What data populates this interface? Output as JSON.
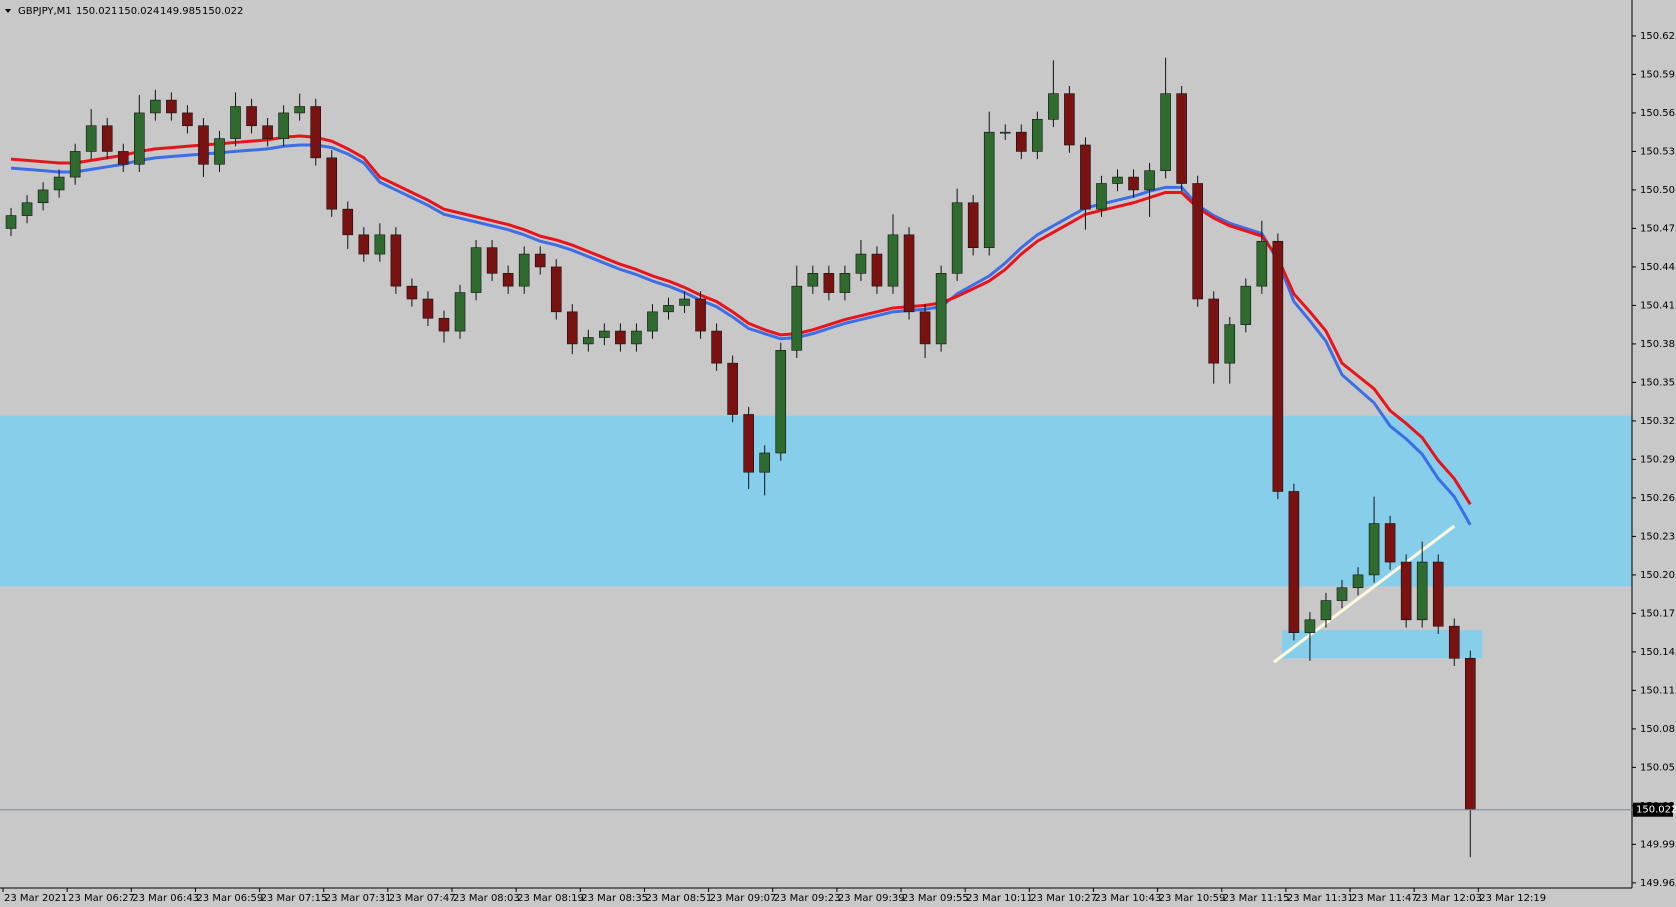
{
  "chart_data": {
    "type": "candlestick",
    "symbol": "GBPJPY,M1",
    "ohlc": [
      150.021,
      150.024,
      149.985,
      150.022
    ],
    "current_price": 150.022,
    "ylim": [
      149.961,
      150.653
    ],
    "yticks": [
      150.625,
      150.595,
      150.565,
      150.535,
      150.505,
      150.475,
      150.445,
      150.415,
      150.385,
      150.355,
      150.325,
      150.295,
      150.265,
      150.235,
      150.205,
      150.175,
      150.145,
      150.115,
      150.085,
      150.055,
      150.025,
      149.995,
      149.965
    ],
    "time_labels": [
      "23 Mar 2021",
      "23 Mar 06:27",
      "23 Mar 06:43",
      "23 Mar 06:59",
      "23 Mar 07:15",
      "23 Mar 07:31",
      "23 Mar 07:47",
      "23 Mar 08:03",
      "23 Mar 08:19",
      "23 Mar 08:35",
      "23 Mar 08:51",
      "23 Mar 09:07",
      "23 Mar 09:23",
      "23 Mar 09:39",
      "23 Mar 09:55",
      "23 Mar 10:11",
      "23 Mar 10:27",
      "23 Mar 10:43",
      "23 Mar 10:59",
      "23 Mar 11:15",
      "23 Mar 11:31",
      "23 Mar 11:47",
      "23 Mar 12:03",
      "23 Mar 12:19"
    ],
    "up_color": "#2f6b2f",
    "down_color": "#7a1212",
    "zones": [
      {
        "low": 150.196,
        "high": 150.329,
        "color": "#87ceeb"
      },
      {
        "low": 150.14,
        "high": 150.162,
        "x": [
          79.25,
          91.75
        ],
        "color": "#87ceeb"
      }
    ],
    "trendline": {
      "x": [
        78.75,
        90
      ],
      "y": [
        150.137,
        150.243
      ],
      "color": "#fff8dc"
    },
    "candles": [
      [
        150.475,
        150.491,
        150.469,
        150.485
      ],
      [
        150.485,
        150.501,
        150.479,
        150.495
      ],
      [
        150.495,
        150.511,
        150.489,
        150.505
      ],
      [
        150.505,
        150.521,
        150.499,
        150.515
      ],
      [
        150.515,
        150.541,
        150.509,
        150.535
      ],
      [
        150.535,
        150.568,
        150.529,
        150.555
      ],
      [
        150.555,
        150.561,
        150.529,
        150.535
      ],
      [
        150.535,
        150.541,
        150.519,
        150.525
      ],
      [
        150.525,
        150.579,
        150.519,
        150.565
      ],
      [
        150.565,
        150.583,
        150.559,
        150.575
      ],
      [
        150.575,
        150.581,
        150.559,
        150.565
      ],
      [
        150.565,
        150.571,
        150.549,
        150.555
      ],
      [
        150.555,
        150.561,
        150.515,
        150.525
      ],
      [
        150.525,
        150.551,
        150.519,
        150.545
      ],
      [
        150.545,
        150.581,
        150.539,
        150.57
      ],
      [
        150.57,
        150.576,
        150.549,
        150.555
      ],
      [
        150.555,
        150.561,
        150.539,
        150.545
      ],
      [
        150.545,
        150.571,
        150.539,
        150.565
      ],
      [
        150.565,
        150.58,
        150.559,
        150.57
      ],
      [
        150.57,
        150.576,
        150.524,
        150.53
      ],
      [
        150.53,
        150.536,
        150.484,
        150.49
      ],
      [
        150.49,
        150.496,
        150.459,
        150.47
      ],
      [
        150.47,
        150.476,
        150.449,
        150.455
      ],
      [
        150.455,
        150.479,
        150.449,
        150.47
      ],
      [
        150.47,
        150.476,
        150.424,
        150.43
      ],
      [
        150.43,
        150.436,
        150.414,
        150.42
      ],
      [
        150.42,
        150.426,
        150.399,
        150.405
      ],
      [
        150.405,
        150.411,
        150.386,
        150.395
      ],
      [
        150.395,
        150.431,
        150.389,
        150.425
      ],
      [
        150.425,
        150.466,
        150.419,
        150.46
      ],
      [
        150.46,
        150.466,
        150.434,
        150.44
      ],
      [
        150.44,
        150.446,
        150.424,
        150.43
      ],
      [
        150.43,
        150.461,
        150.424,
        150.455
      ],
      [
        150.455,
        150.461,
        150.439,
        150.445
      ],
      [
        150.445,
        150.451,
        150.404,
        150.41
      ],
      [
        150.41,
        150.416,
        150.377,
        150.385
      ],
      [
        150.385,
        150.396,
        150.379,
        150.39
      ],
      [
        150.39,
        150.401,
        150.384,
        150.395
      ],
      [
        150.395,
        150.401,
        150.379,
        150.385
      ],
      [
        150.385,
        150.401,
        150.379,
        150.395
      ],
      [
        150.395,
        150.416,
        150.389,
        150.41
      ],
      [
        150.41,
        150.421,
        150.404,
        150.415
      ],
      [
        150.415,
        150.426,
        150.409,
        150.42
      ],
      [
        150.42,
        150.426,
        150.389,
        150.395
      ],
      [
        150.395,
        150.401,
        150.364,
        150.37
      ],
      [
        150.37,
        150.376,
        150.324,
        150.33
      ],
      [
        150.33,
        150.336,
        150.272,
        150.285
      ],
      [
        150.285,
        150.306,
        150.267,
        150.3
      ],
      [
        150.3,
        150.386,
        150.294,
        150.38
      ],
      [
        150.38,
        150.446,
        150.374,
        150.43
      ],
      [
        150.43,
        150.446,
        150.424,
        150.44
      ],
      [
        150.44,
        150.446,
        150.419,
        150.425
      ],
      [
        150.425,
        150.446,
        150.419,
        150.44
      ],
      [
        150.44,
        150.466,
        150.434,
        150.455
      ],
      [
        150.455,
        150.461,
        150.424,
        150.43
      ],
      [
        150.43,
        150.486,
        150.424,
        150.47
      ],
      [
        150.47,
        150.476,
        150.404,
        150.41
      ],
      [
        150.41,
        150.416,
        150.374,
        150.385
      ],
      [
        150.385,
        150.446,
        150.379,
        150.44
      ],
      [
        150.44,
        150.506,
        150.434,
        150.495
      ],
      [
        150.495,
        150.501,
        150.454,
        150.46
      ],
      [
        150.46,
        150.566,
        150.454,
        150.55
      ],
      [
        150.55,
        150.556,
        150.544,
        150.55
      ],
      [
        150.55,
        150.556,
        150.529,
        150.535
      ],
      [
        150.535,
        150.566,
        150.529,
        150.56
      ],
      [
        150.56,
        150.606,
        150.554,
        150.58
      ],
      [
        150.58,
        150.586,
        150.534,
        150.54
      ],
      [
        150.54,
        150.546,
        150.474,
        150.49
      ],
      [
        150.49,
        150.516,
        150.484,
        150.51
      ],
      [
        150.51,
        150.521,
        150.504,
        150.515
      ],
      [
        150.515,
        150.521,
        150.499,
        150.505
      ],
      [
        150.505,
        150.526,
        150.484,
        150.52
      ],
      [
        150.52,
        150.608,
        150.514,
        150.58
      ],
      [
        150.58,
        150.586,
        150.504,
        150.51
      ],
      [
        150.51,
        150.516,
        150.414,
        150.42
      ],
      [
        150.42,
        150.426,
        150.354,
        150.37
      ],
      [
        150.37,
        150.406,
        150.354,
        150.4
      ],
      [
        150.4,
        150.436,
        150.394,
        150.43
      ],
      [
        150.43,
        150.481,
        150.424,
        150.465
      ],
      [
        150.465,
        150.471,
        150.264,
        150.27
      ],
      [
        150.27,
        150.276,
        150.154,
        150.16
      ],
      [
        150.16,
        150.176,
        150.138,
        150.17
      ],
      [
        150.17,
        150.191,
        150.164,
        150.185
      ],
      [
        150.185,
        150.201,
        150.179,
        150.195
      ],
      [
        150.195,
        150.211,
        150.189,
        150.205
      ],
      [
        150.205,
        150.266,
        150.199,
        150.245
      ],
      [
        150.245,
        150.251,
        150.209,
        150.215
      ],
      [
        150.215,
        150.221,
        150.164,
        150.17
      ],
      [
        150.17,
        150.231,
        150.164,
        150.215
      ],
      [
        150.215,
        150.221,
        150.159,
        150.165
      ],
      [
        150.165,
        150.171,
        150.134,
        150.14
      ],
      [
        150.14,
        150.146,
        149.985,
        150.022
      ]
    ],
    "series": [
      {
        "color": "#3c6ee6",
        "values": [
          150.522,
          150.521,
          150.52,
          150.519,
          150.519,
          150.521,
          150.523,
          150.525,
          150.528,
          150.53,
          150.531,
          150.532,
          150.533,
          150.534,
          150.535,
          150.536,
          150.537,
          150.539,
          150.54,
          150.54,
          150.538,
          150.533,
          150.526,
          150.511,
          150.505,
          150.499,
          150.493,
          150.486,
          150.483,
          150.48,
          150.477,
          150.474,
          150.47,
          150.465,
          150.462,
          150.458,
          150.453,
          150.448,
          150.443,
          150.439,
          150.434,
          150.43,
          150.425,
          150.419,
          150.414,
          150.406,
          150.397,
          150.393,
          150.389,
          150.39,
          150.393,
          150.397,
          150.401,
          150.404,
          150.407,
          150.41,
          150.411,
          150.412,
          150.414,
          150.424,
          150.431,
          150.438,
          150.448,
          150.46,
          150.47,
          150.477,
          150.484,
          150.491,
          150.494,
          150.497,
          150.5,
          150.504,
          150.507,
          150.507,
          150.493,
          150.485,
          150.479,
          150.475,
          150.471,
          150.45,
          150.418,
          150.403,
          150.387,
          150.361,
          150.35,
          150.339,
          150.321,
          150.311,
          150.299,
          150.28,
          150.266,
          150.244
        ]
      },
      {
        "color": "#e8141c",
        "values": [
          150.529,
          150.528,
          150.527,
          150.526,
          150.526,
          150.528,
          150.53,
          150.532,
          150.535,
          150.537,
          150.538,
          150.539,
          150.54,
          150.541,
          150.542,
          150.543,
          150.544,
          150.546,
          150.547,
          150.546,
          150.543,
          150.537,
          150.53,
          150.515,
          150.509,
          150.503,
          150.497,
          150.49,
          150.487,
          150.484,
          150.481,
          150.478,
          150.474,
          150.469,
          150.466,
          150.462,
          150.457,
          150.452,
          150.447,
          150.443,
          150.438,
          150.434,
          150.429,
          150.423,
          150.418,
          150.41,
          150.401,
          150.396,
          150.392,
          150.393,
          150.396,
          150.4,
          150.404,
          150.407,
          150.41,
          150.413,
          150.414,
          150.415,
          150.417,
          150.422,
          150.428,
          150.434,
          150.443,
          150.455,
          150.465,
          150.472,
          150.479,
          150.486,
          150.489,
          150.492,
          150.495,
          150.499,
          150.503,
          150.503,
          150.491,
          150.483,
          150.477,
          150.473,
          150.469,
          150.452,
          150.424,
          150.41,
          150.395,
          150.37,
          150.36,
          150.35,
          150.333,
          150.323,
          150.312,
          150.294,
          150.28,
          150.26
        ]
      }
    ]
  }
}
